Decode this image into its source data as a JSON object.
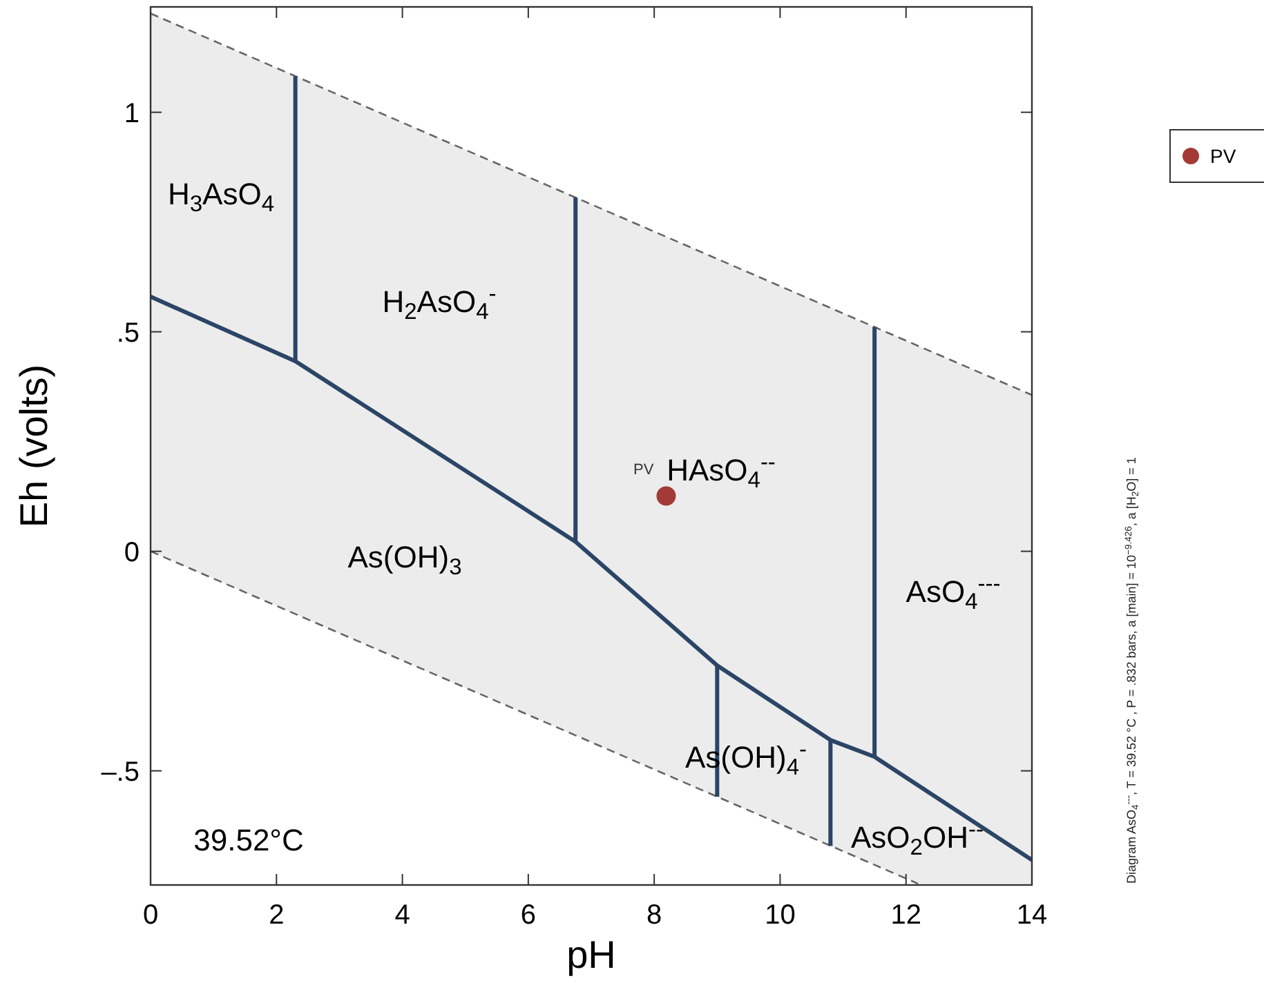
{
  "chart_data": {
    "type": "line",
    "xlabel": "pH",
    "ylabel": "Eh (volts)",
    "xlim": [
      0,
      14
    ],
    "ylim": [
      -0.76,
      1.24
    ],
    "xticks": [
      0,
      2,
      4,
      6,
      8,
      10,
      12,
      14
    ],
    "yticks": [
      {
        "value": -0.5,
        "label": "–.5"
      },
      0,
      {
        "value": 0.5,
        "label": ".5"
      },
      1
    ],
    "legend": "top right",
    "series": [
      {
        "color": "#666666",
        "line_style": "dashed",
        "x": [
          0,
          12.19,
          14
        ],
        "values": [
          1.225,
          0.468,
          0.356
        ],
        "lower": [
          0,
          -0.757,
          -0.757
        ],
        "upper": [
          1.225,
          0.468,
          0.356
        ]
      },
      {
        "color": "#666666",
        "line_style": "dashed",
        "x": [
          0,
          12.19
        ],
        "values": [
          0,
          -0.757
        ]
      },
      {
        "color": "#2b4566",
        "line_style": "solid",
        "x": [
          0,
          2.3,
          6.75,
          9,
          10.8,
          11.5,
          14
        ],
        "values": [
          0.58,
          0.433,
          0.022,
          -0.26,
          -0.43,
          -0.468,
          -0.703
        ]
      },
      {
        "color": "#2b4566",
        "line_style": "solid",
        "x": [
          2.3,
          2.3
        ],
        "values": [
          0.433,
          1.082
        ]
      },
      {
        "color": "#2b4566",
        "line_style": "solid",
        "x": [
          6.75,
          6.75
        ],
        "values": [
          0.022,
          0.806
        ]
      },
      {
        "color": "#2b4566",
        "line_style": "solid",
        "x": [
          9,
          9
        ],
        "values": [
          -0.26,
          -0.559
        ]
      },
      {
        "color": "#2b4566",
        "line_style": "solid",
        "x": [
          10.8,
          10.8
        ],
        "values": [
          -0.43,
          -0.671
        ]
      },
      {
        "color": "#2b4566",
        "line_style": "solid",
        "x": [
          11.5,
          11.5
        ],
        "values": [
          -0.468,
          0.511
        ]
      },
      {
        "type": "scatter",
        "name": "PV",
        "color": "#a33a35",
        "marker": "circle",
        "x": [
          8.19
        ],
        "values": [
          0.126
        ]
      }
    ],
    "annotations": [
      "H$_{3}$AsO$_{4}$",
      "H$_{2}$AsO$_{4}$$^{-}$",
      "HAsO$_{4}$$^{--}$",
      "As(OH)$_{3}$",
      "AsO$_{4}$$^{---}$",
      "As(OH)$_{4}$$^{-}$",
      "AsO$_{2}$OH$^{--}$",
      "39.52°C",
      "Diagram AsO$_{4}$$^{---}$, T = 39.52 °C , P = .832 bars, a [main] = 10$^{−9.426}$, a [H$_{2}$O] = 1"
    ]
  }
}
